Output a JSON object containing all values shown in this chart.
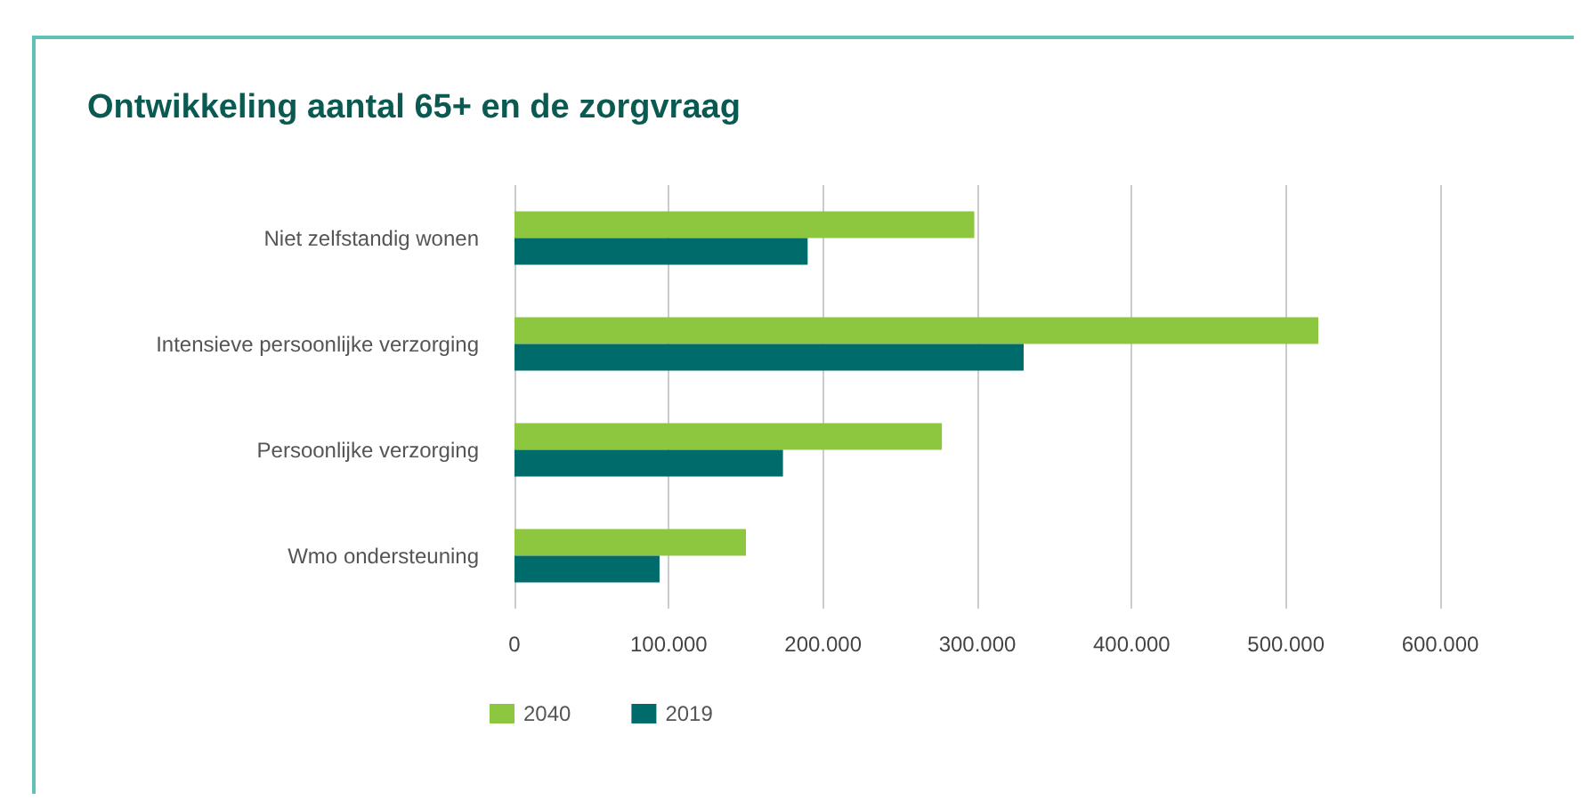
{
  "chart_data": {
    "type": "bar",
    "orientation": "horizontal",
    "title": "Ontwikkeling aantal 65+ en de zorgvraag",
    "categories": [
      "Niet zelfstandig wonen",
      "Intensieve persoonlijke verzorging",
      "Persoonlijke verzorging",
      "Wmo ondersteuning"
    ],
    "series": [
      {
        "name": "2040",
        "color": "#8dc63f",
        "values": [
          298000,
          521000,
          277000,
          150000
        ]
      },
      {
        "name": "2019",
        "color": "#006b6b",
        "values": [
          190000,
          330000,
          174000,
          94000
        ]
      }
    ],
    "xlim": [
      0,
      600000
    ],
    "xticks": [
      0,
      {
        "value": 100000,
        "label": "100.000"
      },
      {
        "value": 200000,
        "label": "200.000"
      },
      {
        "value": 300000,
        "label": "300.000"
      },
      {
        "value": 400000,
        "label": "400.000"
      },
      {
        "value": 500000,
        "label": "500.000"
      },
      {
        "value": 600000,
        "label": "600.000"
      }
    ],
    "grid": "x",
    "legend": "bottom left"
  }
}
